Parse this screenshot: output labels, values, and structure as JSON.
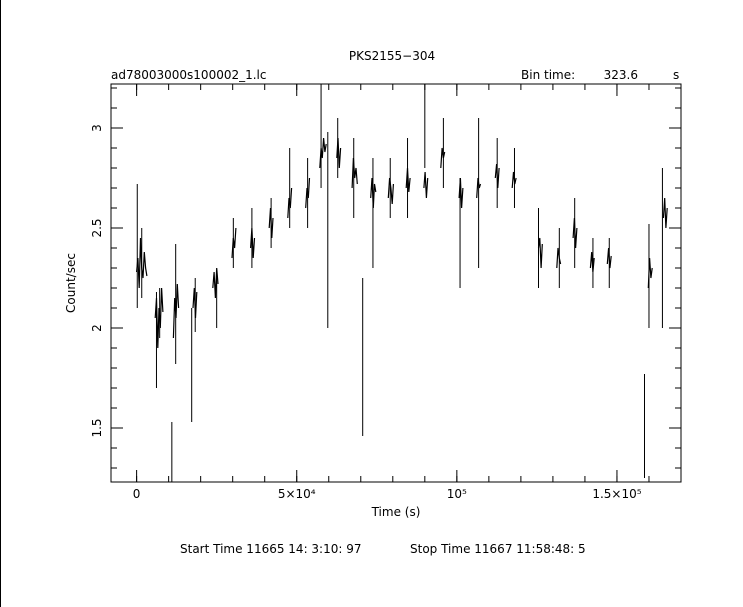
{
  "chart_data": {
    "type": "line",
    "title": "PKS2155−304",
    "file_label": "ad78003000s100002_1.lc",
    "bin_time_label": "Bin time:",
    "bin_time_value": "323.6",
    "bin_time_unit": "s",
    "xlabel": "Time (s)",
    "ylabel": "Count/sec",
    "xlim": [
      -8000,
      170000
    ],
    "ylim": [
      1.23,
      3.22
    ],
    "x_ticks": [
      {
        "value": 0,
        "label": "0"
      },
      {
        "value": 50000,
        "label": "5×10⁴"
      },
      {
        "value": 100000,
        "label": "10⁵"
      },
      {
        "value": 150000,
        "label": "1.5×10⁵"
      }
    ],
    "y_ticks": [
      {
        "value": 1.5,
        "label": "1.5"
      },
      {
        "value": 2.0,
        "label": "2"
      },
      {
        "value": 2.5,
        "label": "2.5"
      },
      {
        "value": 3.0,
        "label": "3"
      }
    ],
    "grid": false,
    "start_time": "Start Time 11665 14: 3:10: 97",
    "stop_time": "Stop Time 11667 11:58:48:  5",
    "series": [
      {
        "color": "#000000",
        "segments": [
          {
            "x": [
              0,
              400,
              800,
              1200,
              1600,
              2000,
              2400,
              2800,
              3200
            ],
            "y": [
              2.28,
              2.35,
              2.2,
              2.45,
              2.3,
              2.25,
              2.38,
              2.3,
              2.26
            ]
          },
          {
            "x": [
              5800,
              6200,
              6600,
              7000,
              7400,
              7800,
              8200
            ],
            "y": [
              2.05,
              2.15,
              1.9,
              2.1,
              2.0,
              2.2,
              2.08
            ]
          },
          {
            "x": [
              11500,
              11900,
              12300,
              12700,
              13100
            ],
            "y": [
              1.95,
              2.15,
              2.05,
              2.22,
              2.1
            ]
          },
          {
            "x": [
              17600,
              18000,
              18400,
              18800
            ],
            "y": [
              2.1,
              2.2,
              2.05,
              2.18
            ]
          },
          {
            "x": [
              23800,
              24200,
              24600,
              25000,
              25400
            ],
            "y": [
              2.2,
              2.28,
              2.15,
              2.3,
              2.22
            ]
          },
          {
            "x": [
              29800,
              30200,
              30600,
              31000
            ],
            "y": [
              2.35,
              2.45,
              2.4,
              2.5
            ]
          },
          {
            "x": [
              35600,
              36000,
              36400,
              36800
            ],
            "y": [
              2.4,
              2.5,
              2.35,
              2.45
            ]
          },
          {
            "x": [
              41400,
              41800,
              42200,
              42600
            ],
            "y": [
              2.5,
              2.6,
              2.45,
              2.55
            ]
          },
          {
            "x": [
              47200,
              47600,
              48000,
              48400
            ],
            "y": [
              2.55,
              2.65,
              2.6,
              2.7
            ]
          },
          {
            "x": [
              52800,
              53200,
              53600,
              54000
            ],
            "y": [
              2.6,
              2.7,
              2.65,
              2.75
            ]
          },
          {
            "x": [
              57200,
              57600,
              58000,
              58400,
              58800,
              59200
            ],
            "y": [
              2.8,
              2.9,
              2.85,
              2.95,
              2.88,
              2.92
            ]
          },
          {
            "x": [
              62500,
              62900,
              63300,
              63700
            ],
            "y": [
              2.85,
              2.95,
              2.8,
              2.9
            ]
          },
          {
            "x": [
              67300,
              67700,
              68100,
              68500,
              68900
            ],
            "y": [
              2.7,
              2.85,
              2.75,
              2.8,
              2.72
            ]
          },
          {
            "x": [
              73100,
              73500,
              73900,
              74300,
              74700
            ],
            "y": [
              2.65,
              2.75,
              2.6,
              2.72,
              2.68
            ]
          },
          {
            "x": [
              78600,
              79000,
              79400,
              79800,
              80200
            ],
            "y": [
              2.65,
              2.75,
              2.7,
              2.62,
              2.72
            ]
          },
          {
            "x": [
              84200,
              84600,
              85000,
              85400
            ],
            "y": [
              2.7,
              2.8,
              2.68,
              2.75
            ]
          },
          {
            "x": [
              89700,
              90100,
              90500,
              90900
            ],
            "y": [
              2.7,
              2.78,
              2.65,
              2.75
            ]
          },
          {
            "x": [
              95000,
              95400,
              95800,
              96200
            ],
            "y": [
              2.8,
              2.9,
              2.85,
              2.88
            ]
          },
          {
            "x": [
              100700,
              101100,
              101500,
              101900
            ],
            "y": [
              2.65,
              2.75,
              2.6,
              2.7
            ]
          },
          {
            "x": [
              106200,
              106600,
              107000,
              107400
            ],
            "y": [
              2.65,
              2.75,
              2.7,
              2.72
            ]
          },
          {
            "x": [
              112000,
              112400,
              112800,
              113200
            ],
            "y": [
              2.75,
              2.82,
              2.7,
              2.8
            ]
          },
          {
            "x": [
              117300,
              117700,
              118100,
              118500
            ],
            "y": [
              2.7,
              2.78,
              2.72,
              2.75
            ]
          },
          {
            "x": [
              125500,
              125900,
              126300,
              126700
            ],
            "y": [
              2.4,
              2.45,
              2.3,
              2.42
            ]
          },
          {
            "x": [
              131200,
              131600,
              132000,
              132400
            ],
            "y": [
              2.3,
              2.4,
              2.35,
              2.32
            ]
          },
          {
            "x": [
              136300,
              136700,
              137100,
              137500
            ],
            "y": [
              2.45,
              2.55,
              2.4,
              2.5
            ]
          },
          {
            "x": [
              141700,
              142100,
              142500,
              142900
            ],
            "y": [
              2.3,
              2.38,
              2.28,
              2.35
            ]
          },
          {
            "x": [
              147000,
              147400,
              147800,
              148200
            ],
            "y": [
              2.32,
              2.4,
              2.3,
              2.36
            ]
          },
          {
            "x": [
              159800,
              160200,
              160600,
              161000
            ],
            "y": [
              2.2,
              2.35,
              2.25,
              2.3
            ]
          },
          {
            "x": [
              164500,
              164900,
              165300,
              165700
            ],
            "y": [
              2.55,
              2.65,
              2.5,
              2.6
            ]
          }
        ],
        "error_bars": [
          {
            "x": 200,
            "low": 2.1,
            "high": 2.72
          },
          {
            "x": 1600,
            "low": 2.15,
            "high": 2.5
          },
          {
            "x": 6200,
            "low": 1.7,
            "high": 2.18
          },
          {
            "x": 7200,
            "low": 1.95,
            "high": 2.2
          },
          {
            "x": 11000,
            "low": 1.22,
            "high": 1.53
          },
          {
            "x": 12200,
            "low": 1.82,
            "high": 2.42
          },
          {
            "x": 17200,
            "low": 1.53,
            "high": 2.1
          },
          {
            "x": 18300,
            "low": 1.98,
            "high": 2.25
          },
          {
            "x": 25000,
            "low": 2.0,
            "high": 2.25
          },
          {
            "x": 30200,
            "low": 2.3,
            "high": 2.55
          },
          {
            "x": 36000,
            "low": 2.3,
            "high": 2.6
          },
          {
            "x": 42000,
            "low": 2.4,
            "high": 2.65
          },
          {
            "x": 47800,
            "low": 2.5,
            "high": 2.9
          },
          {
            "x": 53400,
            "low": 2.5,
            "high": 2.85
          },
          {
            "x": 57600,
            "low": 2.7,
            "high": 3.22
          },
          {
            "x": 59700,
            "low": 2.0,
            "high": 2.98
          },
          {
            "x": 62800,
            "low": 2.75,
            "high": 3.05
          },
          {
            "x": 67800,
            "low": 2.55,
            "high": 2.95
          },
          {
            "x": 70600,
            "low": 1.46,
            "high": 2.25
          },
          {
            "x": 73800,
            "low": 2.3,
            "high": 2.85
          },
          {
            "x": 79200,
            "low": 2.55,
            "high": 2.85
          },
          {
            "x": 84600,
            "low": 2.55,
            "high": 2.95
          },
          {
            "x": 90000,
            "low": 2.8,
            "high": 3.22
          },
          {
            "x": 95800,
            "low": 2.7,
            "high": 3.05
          },
          {
            "x": 101000,
            "low": 2.2,
            "high": 2.75
          },
          {
            "x": 106800,
            "low": 2.3,
            "high": 3.05
          },
          {
            "x": 112600,
            "low": 2.6,
            "high": 2.95
          },
          {
            "x": 118000,
            "low": 2.6,
            "high": 2.9
          },
          {
            "x": 125500,
            "low": 2.2,
            "high": 2.6
          },
          {
            "x": 132000,
            "low": 2.2,
            "high": 2.5
          },
          {
            "x": 136800,
            "low": 2.3,
            "high": 2.65
          },
          {
            "x": 142500,
            "low": 2.2,
            "high": 2.45
          },
          {
            "x": 147600,
            "low": 2.2,
            "high": 2.45
          },
          {
            "x": 158600,
            "low": 1.25,
            "high": 1.77
          },
          {
            "x": 160000,
            "low": 2.0,
            "high": 2.52
          },
          {
            "x": 164200,
            "low": 2.0,
            "high": 2.8
          }
        ]
      }
    ]
  }
}
